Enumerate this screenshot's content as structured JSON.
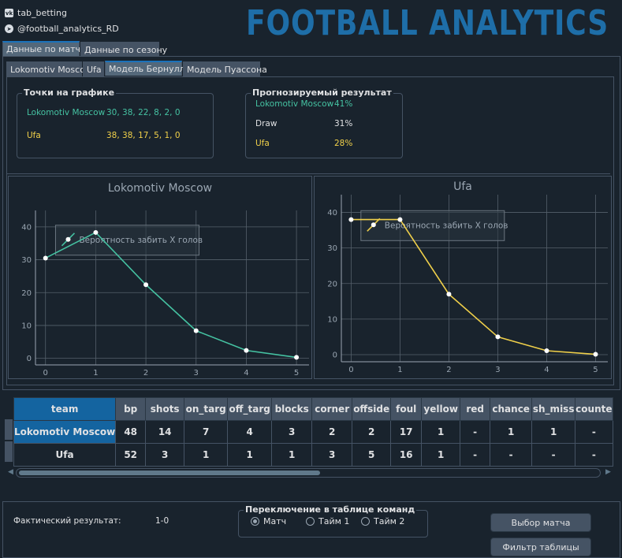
{
  "social": {
    "vk": "tab_betting",
    "telegram": "@football_analytics_RD"
  },
  "brand": "FOOTBALL ANALYTICS",
  "main_tabs": [
    "Данные по матчу",
    "Данные по сезону"
  ],
  "sub_tabs": [
    "Lokomotiv Moscow",
    "Ufa",
    "Модель Бернулли",
    "Модель Пуассона"
  ],
  "points": {
    "title": "Точки на графике",
    "rows": [
      {
        "team": "Lokomotiv Moscow",
        "values": "30, 38, 22, 8, 2, 0"
      },
      {
        "team": "Ufa",
        "values": "38, 38, 17, 5, 1, 0"
      }
    ]
  },
  "forecast": {
    "title": "Прогнозируемый результат",
    "rows": [
      {
        "label": "Lokomotiv Moscow",
        "value": "41%"
      },
      {
        "label": "Draw",
        "value": "31%"
      },
      {
        "label": "Ufa",
        "value": "28%"
      }
    ]
  },
  "colors": {
    "home": "#45c2a2",
    "away": "#f0d04a",
    "accent": "#1464a0"
  },
  "chart_data": [
    {
      "type": "line",
      "title": "Lokomotiv Moscow",
      "legend": "Вероятность забить X голов",
      "legend_position": "top-left",
      "x": [
        0,
        1,
        2,
        3,
        4,
        5
      ],
      "values": [
        30.5,
        38.3,
        22.4,
        8.4,
        2.4,
        0.3
      ],
      "ylim": [
        -2,
        45
      ],
      "xlim": [
        -0.2,
        5.25
      ],
      "yticks": [
        0,
        10,
        20,
        30,
        40
      ],
      "xticks": [
        0,
        1,
        2,
        3,
        4,
        5
      ],
      "grid": true,
      "color": "#45c2a2"
    },
    {
      "type": "line",
      "title": "Ufa",
      "legend": "Вероятность забить X голов",
      "legend_position": "top-left",
      "x": [
        0,
        1,
        2,
        3,
        4,
        5
      ],
      "values": [
        38.0,
        38.0,
        17.0,
        5.0,
        1.1,
        0.1
      ],
      "ylim": [
        -2,
        45
      ],
      "xlim": [
        -0.2,
        5.25
      ],
      "yticks": [
        0,
        10,
        20,
        30,
        40
      ],
      "xticks": [
        0,
        1,
        2,
        3,
        4,
        5
      ],
      "grid": true,
      "color": "#f0d04a"
    }
  ],
  "table": {
    "columns": [
      "team",
      "bp",
      "shots",
      "on_targ",
      "off_targ",
      "blocks",
      "corner",
      "offside",
      "foul",
      "yellow",
      "red",
      "chance",
      "sh_miss",
      "counte"
    ],
    "rows": [
      [
        "Lokomotiv Moscow",
        "48",
        "14",
        "7",
        "4",
        "3",
        "2",
        "2",
        "17",
        "1",
        "-",
        "1",
        "1",
        "-"
      ],
      [
        "Ufa",
        "52",
        "3",
        "1",
        "1",
        "1",
        "3",
        "5",
        "16",
        "1",
        "-",
        "-",
        "-",
        "-"
      ]
    ]
  },
  "actual": {
    "label": "Фактический результат:",
    "value": "1-0"
  },
  "switch": {
    "title": "Переключение в таблице команд",
    "options": [
      "Матч",
      "Тайм 1",
      "Тайм 2"
    ],
    "selected": 0
  },
  "buttons": {
    "select_match": "Выбор матча",
    "filter_table": "Фильтр таблицы"
  }
}
